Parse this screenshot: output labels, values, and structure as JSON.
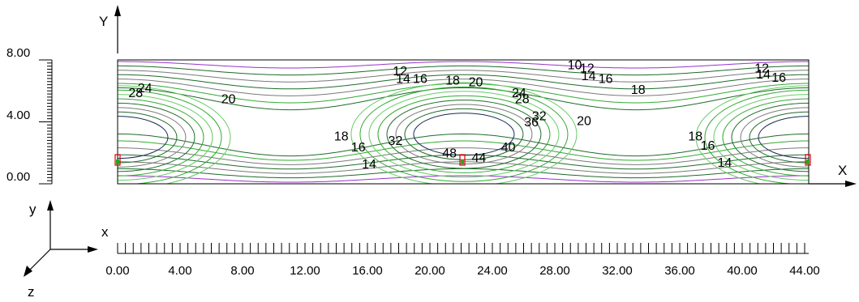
{
  "axes": {
    "big_y_label": "Y",
    "big_x_label": "X",
    "triad": {
      "y": "y",
      "x": "x",
      "z": "z"
    }
  },
  "y_ruler": {
    "range": [
      0,
      8
    ],
    "labels": [
      "8.00",
      "4.00",
      "0.00"
    ]
  },
  "x_ruler": {
    "range": [
      0,
      44
    ],
    "labels": [
      "0.00",
      "4.00",
      "8.00",
      "12.00",
      "16.00",
      "20.00",
      "24.00",
      "28.00",
      "32.00",
      "36.00",
      "40.00",
      "44.00"
    ]
  },
  "domain": {
    "x_range": [
      0,
      44.7
    ],
    "y_range": [
      0,
      8
    ]
  },
  "contour_labels": [
    {
      "text": "12",
      "x": 17.8,
      "y": 7.0
    },
    {
      "text": "14",
      "x": 18.0,
      "y": 6.5
    },
    {
      "text": "16",
      "x": 19.1,
      "y": 6.5
    },
    {
      "text": "18",
      "x": 21.2,
      "y": 6.4
    },
    {
      "text": "20",
      "x": 22.7,
      "y": 6.3
    },
    {
      "text": "10",
      "x": 29.1,
      "y": 7.4
    },
    {
      "text": "12",
      "x": 29.9,
      "y": 7.2
    },
    {
      "text": "14",
      "x": 30.0,
      "y": 6.7
    },
    {
      "text": "16",
      "x": 31.1,
      "y": 6.5
    },
    {
      "text": "18",
      "x": 33.2,
      "y": 5.8
    },
    {
      "text": "12",
      "x": 41.2,
      "y": 7.2
    },
    {
      "text": "14",
      "x": 41.3,
      "y": 6.8
    },
    {
      "text": "16",
      "x": 42.3,
      "y": 6.6
    },
    {
      "text": "24",
      "x": 1.3,
      "y": 5.9
    },
    {
      "text": "28",
      "x": 0.7,
      "y": 5.6
    },
    {
      "text": "20",
      "x": 6.7,
      "y": 5.2
    },
    {
      "text": "24",
      "x": 25.5,
      "y": 5.6
    },
    {
      "text": "28",
      "x": 25.7,
      "y": 5.2
    },
    {
      "text": "32",
      "x": 26.8,
      "y": 4.1
    },
    {
      "text": "36",
      "x": 26.3,
      "y": 3.7
    },
    {
      "text": "20",
      "x": 29.7,
      "y": 3.8
    },
    {
      "text": "18",
      "x": 14.0,
      "y": 2.8
    },
    {
      "text": "16",
      "x": 15.1,
      "y": 2.1
    },
    {
      "text": "32",
      "x": 17.5,
      "y": 2.5
    },
    {
      "text": "48",
      "x": 21.0,
      "y": 1.7
    },
    {
      "text": "44",
      "x": 22.9,
      "y": 1.4
    },
    {
      "text": "40",
      "x": 24.8,
      "y": 2.1
    },
    {
      "text": "14",
      "x": 15.8,
      "y": 1.0
    },
    {
      "text": "18",
      "x": 36.9,
      "y": 2.8
    },
    {
      "text": "16",
      "x": 37.7,
      "y": 2.2
    },
    {
      "text": "14",
      "x": 38.8,
      "y": 1.1
    }
  ],
  "colors": {
    "outline": "#000000",
    "contour_purple": "#9933cc",
    "contour_dark_green": "#1f6b2a",
    "contour_grey": "#7a7a7a",
    "contour_green": "#33aa33",
    "contour_light_green": "#66cc66",
    "contour_dark_blue": "#1a2a55",
    "marker_red": "#dd0000",
    "marker_green": "#22aa22"
  }
}
